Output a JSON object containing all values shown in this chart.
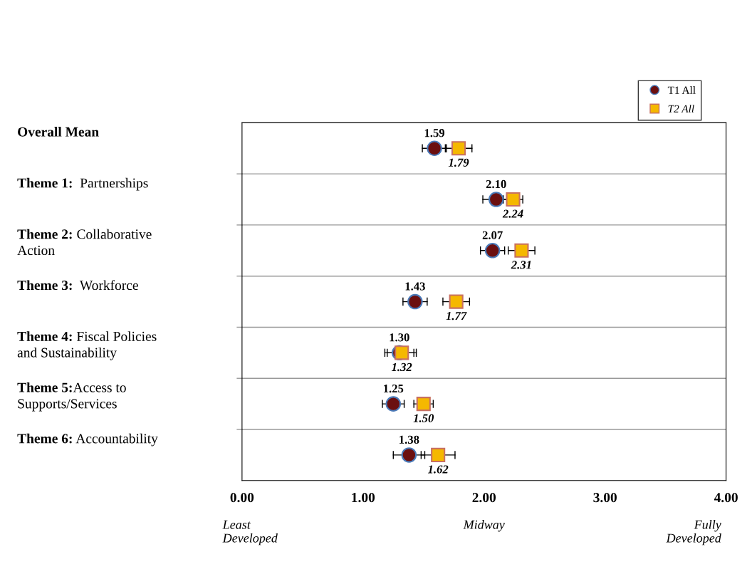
{
  "chart_data": {
    "type": "scatter",
    "orientation": "horizontal",
    "categories": [
      "Overall Mean",
      "Theme 1:  Partnerships",
      "Theme 2: Collaborative\nAction",
      "Theme 3:  Workforce",
      "Theme 4: Fiscal Policies\nand Sustainability",
      "Theme 5:Access to\nSupports/Services",
      "Theme 6: Accountability"
    ],
    "series": [
      {
        "name": "T1 All",
        "color": "#6b0f0f",
        "marker": "circle",
        "values": [
          1.59,
          2.1,
          2.07,
          1.43,
          1.3,
          1.25,
          1.38
        ],
        "errors": [
          0.1,
          0.11,
          0.1,
          0.1,
          0.12,
          0.09,
          0.13
        ],
        "value_labels": [
          "1.59",
          "2.10",
          "2.07",
          "1.43",
          "1.30",
          "1.25",
          "1.38"
        ]
      },
      {
        "name": "T2 All",
        "color": "#f5b800",
        "marker": "square",
        "values": [
          1.79,
          2.24,
          2.31,
          1.77,
          1.32,
          1.5,
          1.62
        ],
        "errors": [
          0.11,
          0.08,
          0.11,
          0.11,
          0.12,
          0.08,
          0.14
        ],
        "value_labels": [
          "1.79",
          "2.24",
          "2.31",
          "1.77",
          "1.32",
          "1.50",
          "1.62"
        ]
      }
    ],
    "xlim": [
      0,
      4
    ],
    "xticks": [
      {
        "value": 0,
        "label": "0.00"
      },
      {
        "value": 1,
        "label": "1.00"
      },
      {
        "value": 2,
        "label": "2.00"
      },
      {
        "value": 3,
        "label": "3.00"
      },
      {
        "value": 4,
        "label": "4.00"
      }
    ],
    "annotations": [
      "Least\nDeveloped",
      "Midway",
      "Fully\nDeveloped"
    ],
    "grid": "y",
    "legend": "top right"
  }
}
